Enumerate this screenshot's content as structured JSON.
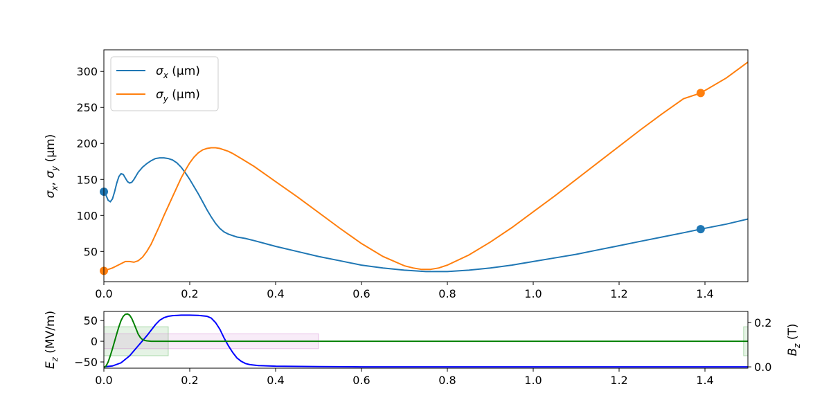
{
  "chart_data": [
    {
      "type": "line",
      "xlabel": "",
      "ylabel": "σx, σy (µm)",
      "xlim": [
        0,
        1.5
      ],
      "ylim": [
        8,
        330
      ],
      "xticks": [
        0.0,
        0.2,
        0.4,
        0.6,
        0.8,
        1.0,
        1.2,
        1.4
      ],
      "xtick_labels": [
        "0.0",
        "0.2",
        "0.4",
        "0.6",
        "0.8",
        "1.0",
        "1.2",
        "1.4"
      ],
      "yticks": [
        50,
        100,
        150,
        200,
        250,
        300
      ],
      "ytick_labels": [
        "50",
        "100",
        "150",
        "200",
        "250",
        "300"
      ],
      "grid": false,
      "legend_position": "top-left",
      "series": [
        {
          "name": "σx (µm)",
          "legend_label": "σ",
          "legend_sub": "x",
          "legend_unit": " (µm)",
          "color": "#1f77b4",
          "x": [
            0,
            0.005,
            0.01,
            0.015,
            0.02,
            0.025,
            0.03,
            0.035,
            0.04,
            0.045,
            0.05,
            0.055,
            0.06,
            0.065,
            0.07,
            0.075,
            0.08,
            0.09,
            0.1,
            0.11,
            0.12,
            0.13,
            0.14,
            0.15,
            0.16,
            0.17,
            0.18,
            0.19,
            0.2,
            0.21,
            0.22,
            0.23,
            0.24,
            0.25,
            0.26,
            0.27,
            0.28,
            0.29,
            0.3,
            0.31,
            0.32,
            0.33,
            0.35,
            0.4,
            0.45,
            0.5,
            0.55,
            0.6,
            0.65,
            0.7,
            0.75,
            0.8,
            0.85,
            0.9,
            0.95,
            1.0,
            1.05,
            1.1,
            1.15,
            1.2,
            1.25,
            1.3,
            1.35,
            1.39,
            1.45,
            1.5
          ],
          "y": [
            133,
            128,
            121,
            119,
            123,
            133,
            145,
            154,
            158,
            157,
            152,
            147,
            145,
            146,
            150,
            155,
            160,
            167,
            172,
            176,
            179,
            180,
            180,
            179,
            177,
            173,
            167,
            159,
            150,
            140,
            130,
            119,
            108,
            98,
            89,
            82,
            77,
            74,
            72,
            70,
            69,
            68,
            65,
            57,
            50,
            43,
            37,
            31,
            27,
            24,
            22,
            22,
            24,
            27,
            31,
            36,
            41,
            46,
            52,
            58,
            64,
            70,
            76,
            81,
            88,
            95
          ]
        },
        {
          "name": "σy (µm)",
          "legend_label": "σ",
          "legend_sub": "y",
          "legend_unit": " (µm)",
          "color": "#ff7f0e",
          "x": [
            0,
            0.005,
            0.01,
            0.02,
            0.03,
            0.04,
            0.05,
            0.06,
            0.07,
            0.08,
            0.09,
            0.1,
            0.11,
            0.12,
            0.13,
            0.14,
            0.15,
            0.16,
            0.17,
            0.18,
            0.19,
            0.2,
            0.21,
            0.22,
            0.23,
            0.24,
            0.25,
            0.26,
            0.27,
            0.28,
            0.29,
            0.3,
            0.32,
            0.35,
            0.4,
            0.45,
            0.5,
            0.55,
            0.6,
            0.65,
            0.7,
            0.72,
            0.74,
            0.75,
            0.76,
            0.78,
            0.8,
            0.85,
            0.9,
            0.95,
            1.0,
            1.05,
            1.1,
            1.15,
            1.2,
            1.25,
            1.3,
            1.35,
            1.39,
            1.45,
            1.5
          ],
          "y": [
            23,
            24,
            25,
            27,
            30,
            33,
            36,
            36,
            35,
            37,
            42,
            50,
            60,
            73,
            86,
            100,
            113,
            126,
            139,
            152,
            163,
            173,
            181,
            187,
            191,
            193,
            194,
            194,
            193,
            191,
            189,
            186,
            179,
            168,
            147,
            126,
            104,
            82,
            61,
            43,
            30,
            27,
            25,
            25,
            25,
            27,
            31,
            45,
            63,
            83,
            105,
            127,
            150,
            173,
            196,
            219,
            241,
            262,
            270,
            291,
            313
          ]
        }
      ],
      "markers": [
        {
          "series": 0,
          "x": [
            0,
            1.39
          ],
          "y": [
            133,
            81
          ],
          "color": "#1f77b4"
        },
        {
          "series": 1,
          "x": [
            0,
            1.39
          ],
          "y": [
            23,
            270
          ],
          "color": "#ff7f0e"
        }
      ]
    },
    {
      "type": "line",
      "xlabel": "",
      "ylabel": "Ez (MV/m)",
      "ylabel_sym": "E",
      "ylabel_sub": "z",
      "ylabel_unit": " (MV/m)",
      "ylabel2": "Bz (T)",
      "ylabel2_sym": "B",
      "ylabel2_sub": "z",
      "ylabel2_unit": " (T)",
      "xlim": [
        0,
        1.5
      ],
      "ylim": [
        -65,
        72
      ],
      "y2lim": [
        -0.006,
        0.25
      ],
      "xticks": [
        0.0,
        0.2,
        0.4,
        0.6,
        0.8,
        1.0,
        1.2,
        1.4
      ],
      "xtick_labels": [
        "0.0",
        "0.2",
        "0.4",
        "0.6",
        "0.8",
        "1.0",
        "1.2",
        "1.4"
      ],
      "yticks": [
        -50,
        0,
        50
      ],
      "ytick_labels": [
        "−50",
        "0",
        "50"
      ],
      "y2ticks": [
        0.0,
        0.2
      ],
      "y2tick_labels": [
        "0.0",
        "0.2"
      ],
      "grid": false,
      "regions": [
        {
          "x0": 0.0,
          "x1": 0.15,
          "y0": -35,
          "y1": 35,
          "color": "#2ca02c",
          "opacity": 0.12
        },
        {
          "x0": 0.0,
          "x1": 0.5,
          "y0": -18,
          "y1": 18,
          "color": "#c55fc5",
          "opacity": 0.12
        },
        {
          "x0": 1.49,
          "x1": 1.5,
          "y0": -35,
          "y1": 35,
          "color": "#2ca02c",
          "opacity": 0.12
        }
      ],
      "series": [
        {
          "name": "",
          "axis": "right",
          "color": "#0000ff",
          "x": [
            0,
            0.02,
            0.04,
            0.06,
            0.08,
            0.1,
            0.11,
            0.12,
            0.13,
            0.14,
            0.15,
            0.16,
            0.18,
            0.2,
            0.22,
            0.24,
            0.25,
            0.26,
            0.27,
            0.28,
            0.29,
            0.3,
            0.31,
            0.32,
            0.33,
            0.34,
            0.36,
            0.4,
            0.5,
            0.6,
            1.0,
            1.5
          ],
          "y": [
            0.0,
            0.004,
            0.018,
            0.05,
            0.095,
            0.14,
            0.165,
            0.19,
            0.21,
            0.222,
            0.228,
            0.231,
            0.233,
            0.233,
            0.232,
            0.228,
            0.22,
            0.2,
            0.17,
            0.13,
            0.095,
            0.065,
            0.04,
            0.025,
            0.015,
            0.01,
            0.006,
            0.003,
            0.001,
            0.0,
            0.0,
            0.0
          ]
        },
        {
          "name": "",
          "axis": "left",
          "color": "#008000",
          "x": [
            0,
            0.005,
            0.01,
            0.015,
            0.02,
            0.025,
            0.03,
            0.035,
            0.04,
            0.045,
            0.05,
            0.055,
            0.06,
            0.065,
            0.07,
            0.075,
            0.08,
            0.085,
            0.09,
            0.095,
            0.1,
            0.11,
            0.12,
            0.15,
            0.2,
            0.5,
            1.0,
            1.5
          ],
          "y": [
            -63,
            -60,
            -50,
            -35,
            -18,
            0,
            18,
            35,
            50,
            60,
            65,
            66,
            63,
            55,
            43,
            30,
            17,
            9,
            4,
            2,
            1,
            0,
            0,
            0,
            0,
            0,
            0,
            0
          ]
        }
      ]
    }
  ]
}
